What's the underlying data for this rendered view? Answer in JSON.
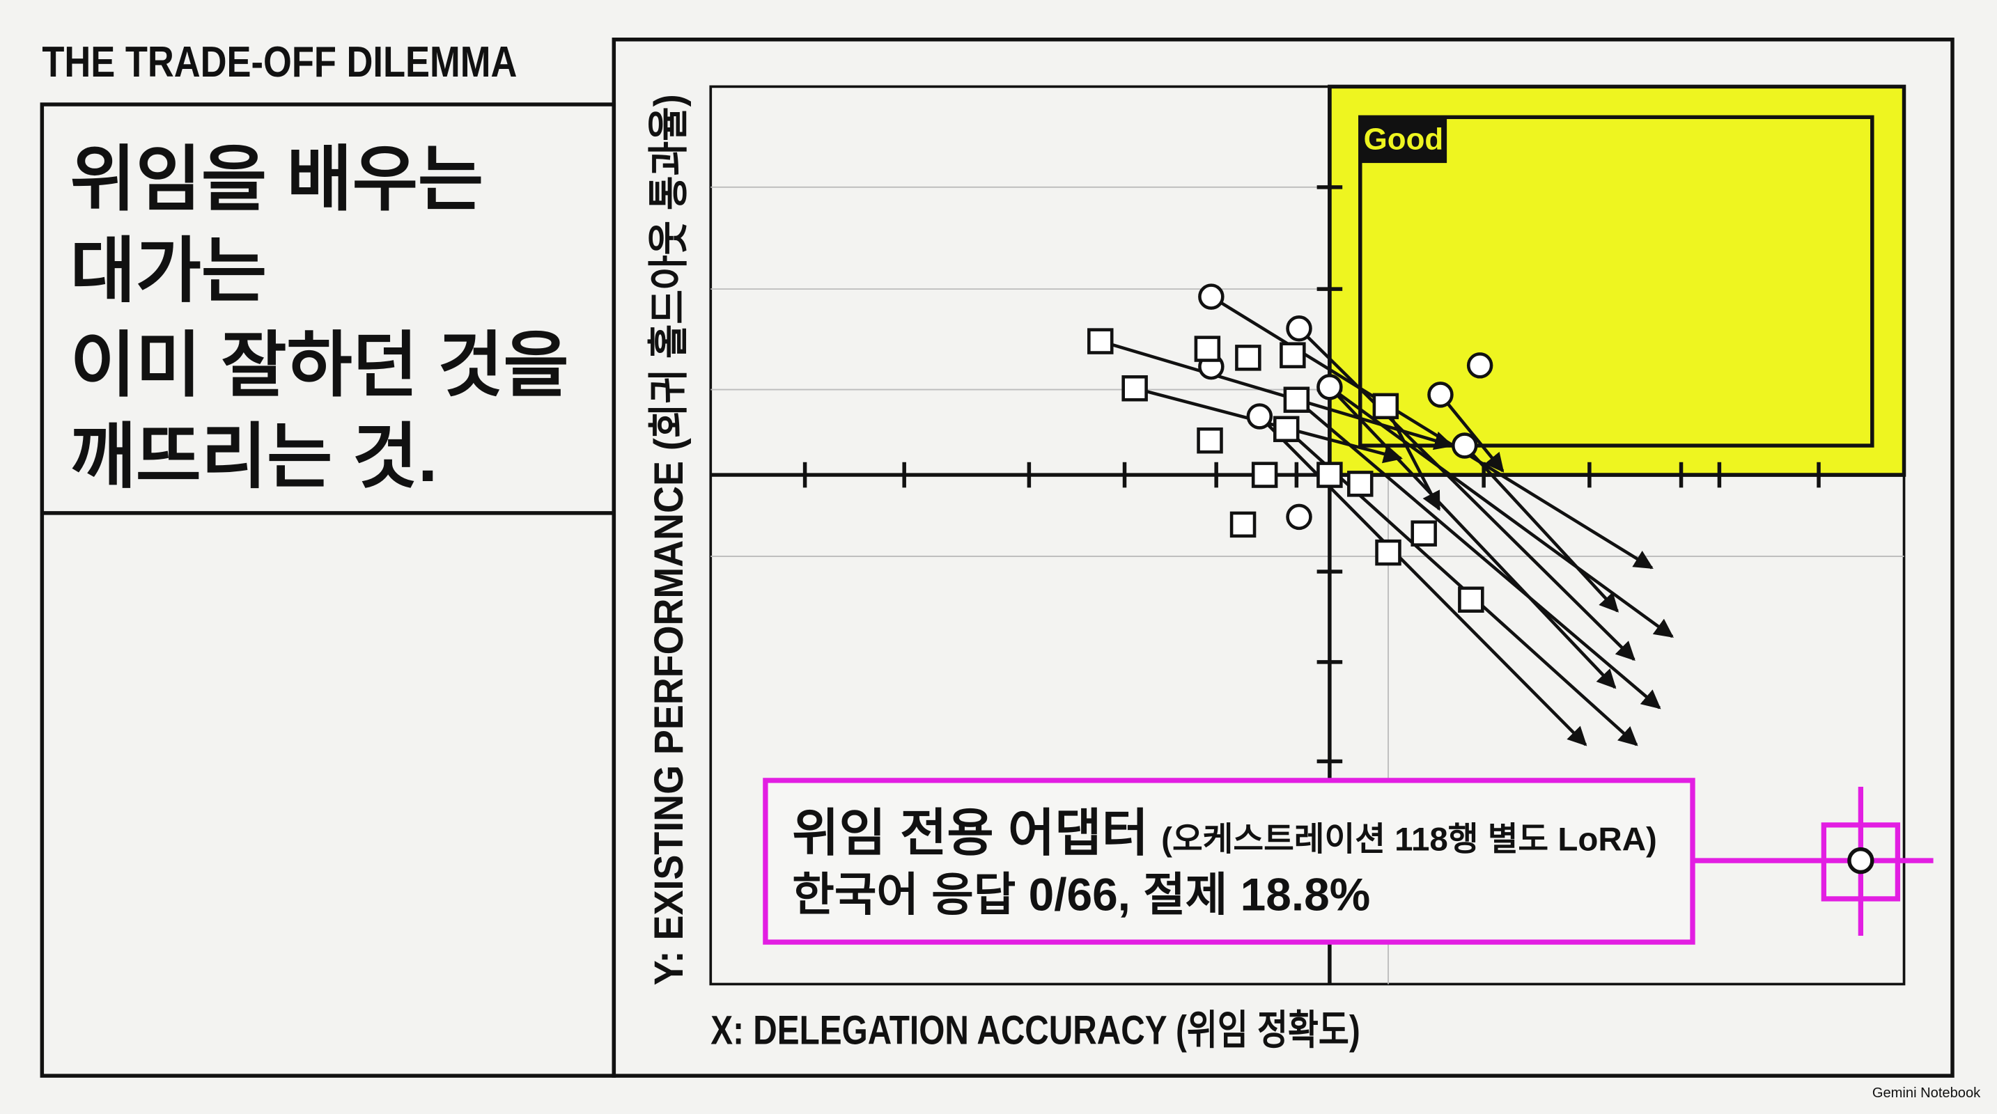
{
  "header": {
    "title": "THE TRADE-OFF DILEMMA"
  },
  "headline": {
    "lines": [
      "위임을 배우는",
      "대가는",
      "이미 잘하던 것을",
      "깨뜨리는 것."
    ]
  },
  "chart": {
    "x_label": "X: DELEGATION ACCURACY (위임 정확도)",
    "y_label": "Y: EXISTING PERFORMANCE (회귀 홀드아웃 통과율)",
    "good_label": "Good"
  },
  "callout": {
    "title": "위임 전용 어댑터",
    "note": "(오케스트레이션 118행 별도 LoRA)",
    "detail": "한국어 응답 0/66, 절제 18.8%"
  },
  "footer": {
    "brand": "Gemini Notebook"
  }
}
